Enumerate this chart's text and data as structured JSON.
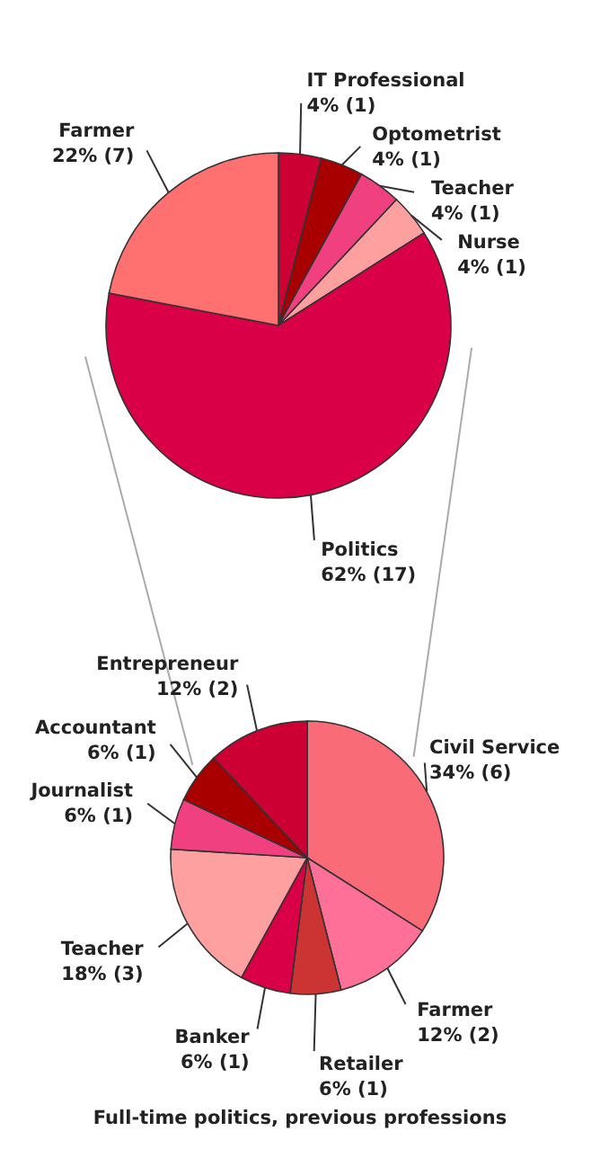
{
  "chart_data": [
    {
      "type": "pie",
      "categories": [
        "IT Professional",
        "Optometrist",
        "Teacher",
        "Nurse",
        "Politics",
        "Farmer"
      ],
      "values": [
        4,
        4,
        4,
        4,
        62,
        22
      ],
      "colors": [
        "#cc0033",
        "#a80000",
        "#f04080",
        "#ffa0a0",
        "#d90048",
        "#ff7070"
      ],
      "value_labels": [
        "4% (1)",
        "4% (1)",
        "4% (1)",
        "4% (1)",
        "62% (17)",
        "22% (7)"
      ]
    },
    {
      "type": "pie",
      "title": "Full-time politics, previous professions",
      "categories": [
        "Civil Service",
        "Farmer",
        "Retailer",
        "Banker",
        "Teacher",
        "Journalist",
        "Accountant",
        "Entrepreneur"
      ],
      "values": [
        34,
        12,
        6,
        6,
        18,
        6,
        6,
        12
      ],
      "colors": [
        "#fa6b78",
        "#ff7098",
        "#cc3333",
        "#d90048",
        "#ffa0a0",
        "#f04080",
        "#a80000",
        "#cc0033"
      ],
      "value_labels": [
        "34% (6)",
        "12% (2)",
        "6% (1)",
        "6% (1)",
        "18% (3)",
        "6% (1)",
        "6% (1)",
        "12% (2)"
      ]
    }
  ]
}
